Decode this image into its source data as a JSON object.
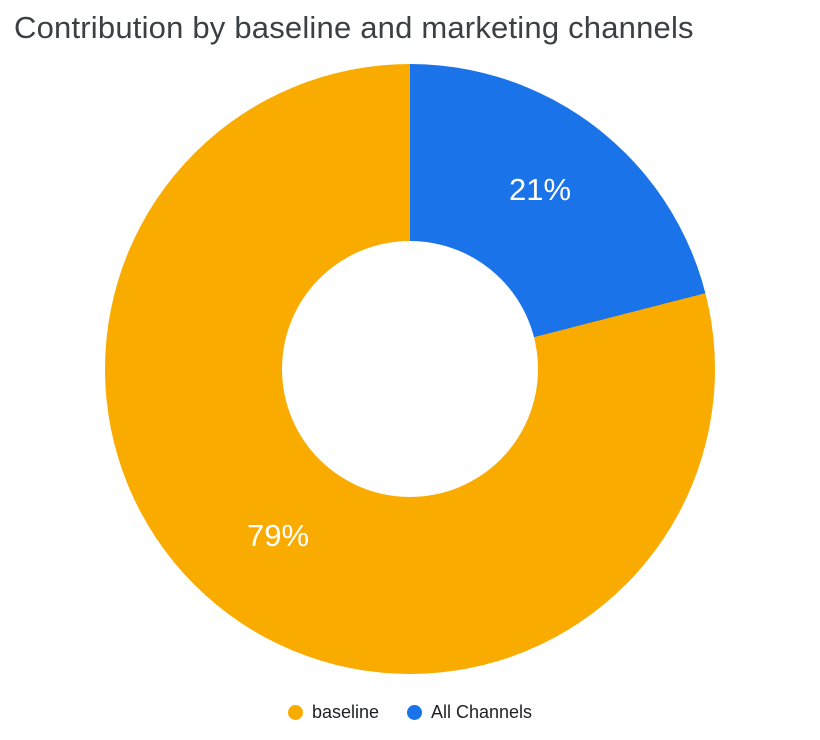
{
  "title": "Contribution by baseline and marketing channels",
  "chart_data": {
    "type": "pie",
    "donut": true,
    "hole_ratio": 0.42,
    "title": "Contribution by baseline and marketing channels",
    "categories": [
      "baseline",
      "All Channels"
    ],
    "values": [
      79,
      21
    ],
    "unit": "%",
    "legend_position": "bottom",
    "start_angle_deg": 0,
    "direction": "clockwise",
    "segments": [
      {
        "label": "All Channels",
        "value": 21,
        "color": "#1A73E8",
        "slice_label": "21%"
      },
      {
        "label": "baseline",
        "value": 79,
        "color": "#F9AB00",
        "slice_label": "79%"
      }
    ]
  },
  "legend": {
    "items": [
      {
        "label": "baseline",
        "color": "#F9AB00"
      },
      {
        "label": "All Channels",
        "color": "#1A73E8"
      }
    ]
  },
  "colors": {
    "baseline_slice": "#F9AB00",
    "all_channels_slice": "#1A73E8",
    "title_text": "#3C4043",
    "slice_label_text": "#FFFFFF",
    "background": "#FFFFFF"
  }
}
